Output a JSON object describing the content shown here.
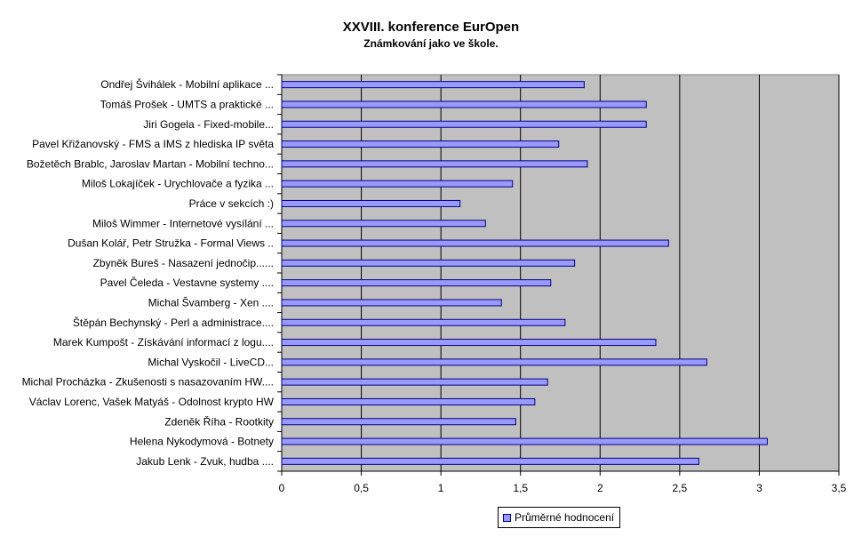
{
  "chart_data": {
    "type": "bar",
    "orientation": "horizontal",
    "title": "XXVIII. konference EurOpen",
    "subtitle": "Známkování jako ve škole.",
    "categories": [
      "Ondřej Švihálek - Mobilní aplikace ...",
      "Tomáš Prošek - UMTS a praktické ...",
      "Jiri Gogela - Fixed-mobile...",
      "Pavel Křižanovský - FMS a IMS z hlediska IP světa",
      "Božetěch Brablc, Jaroslav Martan - Mobilní techno...",
      "Miloš Lokajíček - Urychlovače a fyzika ...",
      "Práce v sekcích :)",
      "Miloš Wimmer - Internetové vysílání ...",
      "Dušan Kolář, Petr Stružka - Formal Views ..",
      "Zbyněk Bureš - Nasazení jednočip......",
      "Pavel Čeleda - Vestavne systemy ....",
      "Michal Švamberg - Xen ....",
      "Štěpán Bechynský - Perl a administrace....",
      "Marek Kumpošt - Získávání informací z logu....",
      "Michal Vyskočil - LiveCD...",
      "Michal Procházka - Zkušenosti s nasazovaním HW....",
      "Václav Lorenc, Vašek Matyáš - Odolnost krypto HW",
      "Zdeněk Říha - Rootkity",
      "Helena Nykodymová - Botnety",
      "Jakub Lenk - Zvuk, hudba ...."
    ],
    "series": [
      {
        "name": "Průměrné hodnocení",
        "values": [
          1.9,
          2.29,
          2.29,
          1.74,
          1.92,
          1.45,
          1.12,
          1.28,
          2.43,
          1.84,
          1.69,
          1.38,
          1.78,
          2.35,
          2.67,
          1.67,
          1.59,
          1.47,
          3.05,
          2.62
        ]
      }
    ],
    "xlim": [
      0,
      3.5
    ],
    "xticks": [
      "0",
      "0,5",
      "1",
      "1,5",
      "2",
      "2,5",
      "3",
      "3,5"
    ],
    "grid": true,
    "legend_position": "bottom",
    "colors": {
      "bar_fill": "#9999ff",
      "bar_stroke": "#000080",
      "plot_background": "#c0c0c0",
      "gridline": "#000000"
    }
  }
}
